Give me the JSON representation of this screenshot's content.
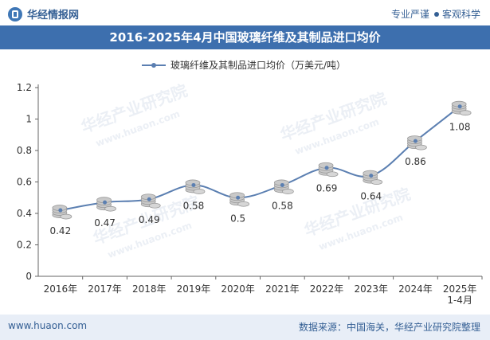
{
  "header": {
    "brand": "华经情报网",
    "slogan_left": "专业严谨",
    "slogan_right": "客观科学"
  },
  "footer": {
    "website": "www.huaon.com",
    "source": "数据来源：中国海关，华经产业研究院整理"
  },
  "watermark": {
    "name": "华经产业研究院",
    "url": "www.huaon.com"
  },
  "colors": {
    "accent": "#3d6fae",
    "line": "#5b7fb1",
    "coin": "#c9c9c9"
  },
  "chart_data": {
    "type": "line",
    "title": "2016-2025年4月中国玻璃纤维及其制品进口均价",
    "legend": "玻璃纤维及其制品进口均价（万美元/吨）",
    "legend_position": "top-center",
    "categories": [
      "2016年",
      "2017年",
      "2018年",
      "2019年",
      "2020年",
      "2021年",
      "2022年",
      "2023年",
      "2024年",
      "2025年\n1-4月"
    ],
    "values": [
      0.42,
      0.47,
      0.49,
      0.58,
      0.5,
      0.58,
      0.69,
      0.64,
      0.86,
      1.08
    ],
    "value_labels": [
      "0.42",
      "0.47",
      "0.49",
      "0.58",
      "0.5",
      "0.58",
      "0.69",
      "0.64",
      "0.86",
      "1.08"
    ],
    "ylim": [
      0,
      1.2
    ],
    "yticks": [
      0,
      0.2,
      0.4,
      0.6,
      0.8,
      1,
      1.2
    ],
    "ytick_labels": [
      "0",
      "0.2",
      "0.4",
      "0.6",
      "0.8",
      "1",
      "1.2"
    ],
    "grid": false,
    "xlabel": "",
    "ylabel": ""
  }
}
